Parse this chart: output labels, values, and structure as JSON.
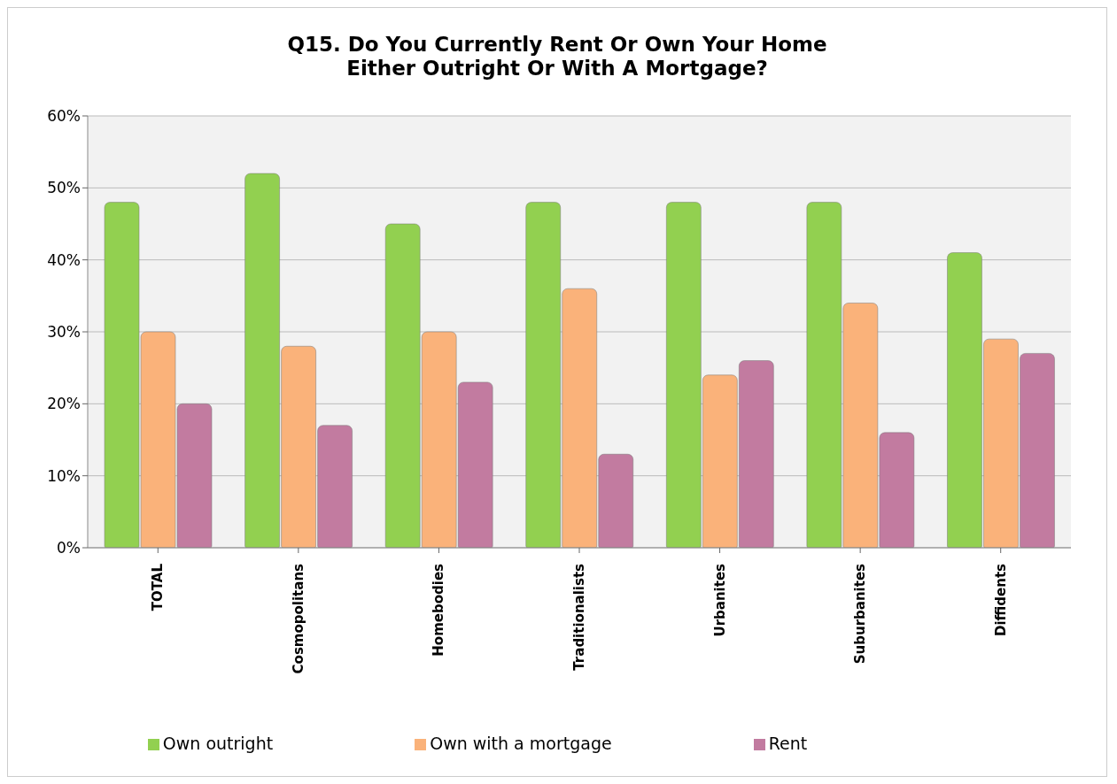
{
  "chart_data": {
    "type": "bar",
    "title": "Q15. Do You Currently Rent Or Own Your Home Either Outright Or With A Mortgage?",
    "categories": [
      "TOTAL",
      "Cosmopolitans",
      "Homebodies",
      "Traditionalists",
      "Urbanites",
      "Suburbanites",
      "Diffidents"
    ],
    "series": [
      {
        "name": "Own outright",
        "color": "#92d050",
        "values": [
          48,
          52,
          45,
          48,
          48,
          48,
          41
        ]
      },
      {
        "name": "Own with a mortgage",
        "color": "#fab27a",
        "values": [
          30,
          28,
          30,
          36,
          24,
          34,
          29
        ]
      },
      {
        "name": "Rent",
        "color": "#c27ba0",
        "values": [
          20,
          17,
          23,
          13,
          26,
          16,
          27
        ]
      }
    ],
    "ylim": [
      0,
      60
    ],
    "yticks": [
      {
        "value": 0,
        "label": "0%"
      },
      {
        "value": 10,
        "label": "10%"
      },
      {
        "value": 20,
        "label": "20%"
      },
      {
        "value": 30,
        "label": "30%"
      },
      {
        "value": 40,
        "label": "40%"
      },
      {
        "value": 50,
        "label": "50%"
      },
      {
        "value": 60,
        "label": "60%"
      }
    ],
    "grid": "y",
    "legend": "bottom"
  }
}
